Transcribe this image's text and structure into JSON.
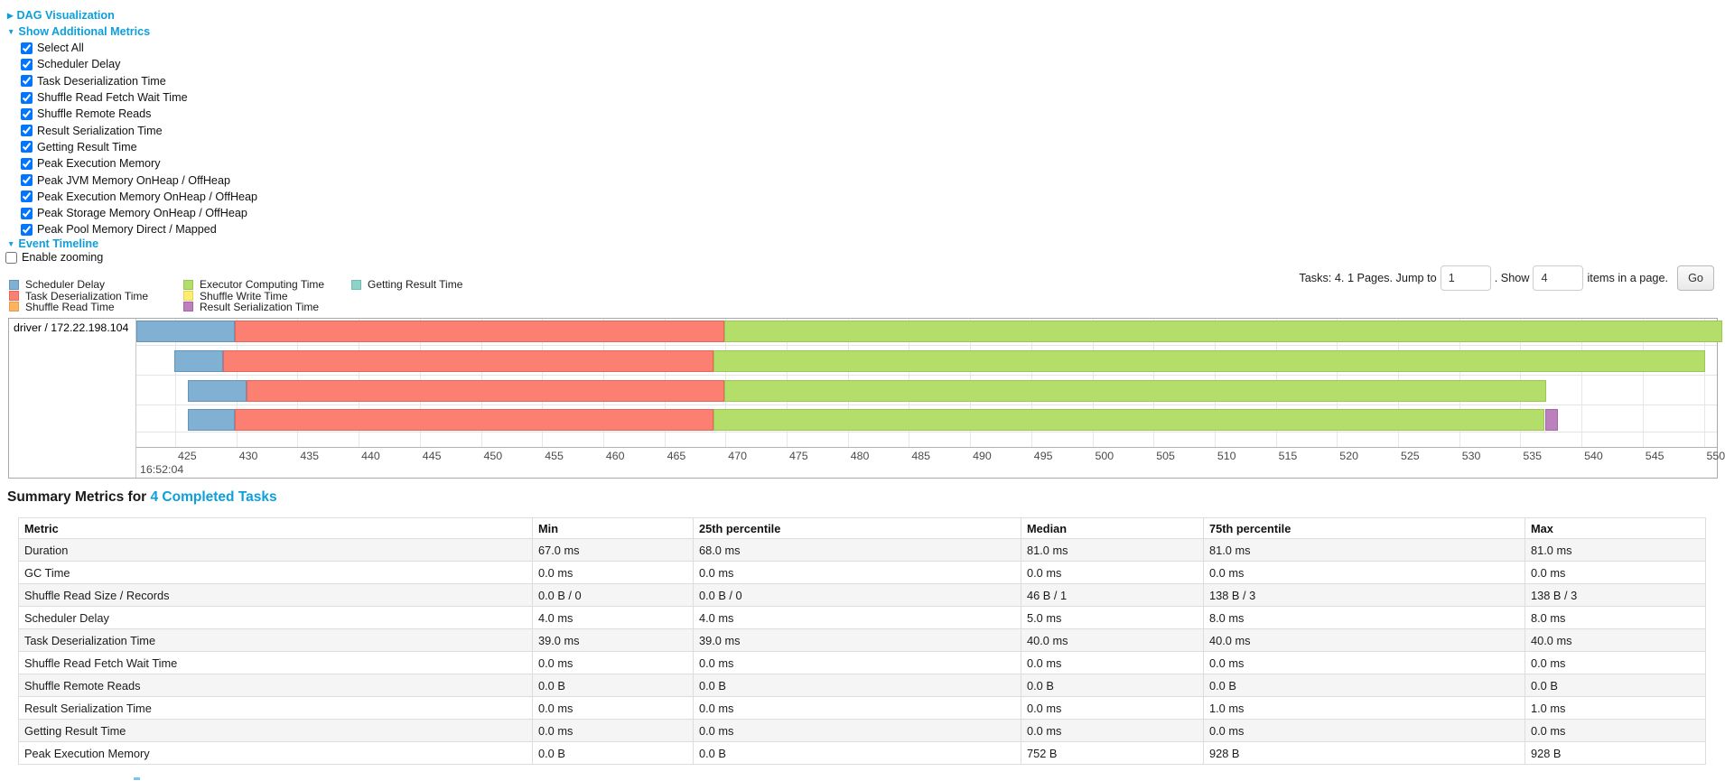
{
  "links": {
    "dag": "DAG Visualization",
    "additional_metrics": "Show Additional Metrics",
    "event_timeline": "Event Timeline"
  },
  "metrics_panel": {
    "items": [
      "Select All",
      "Scheduler Delay",
      "Task Deserialization Time",
      "Shuffle Read Fetch Wait Time",
      "Shuffle Remote Reads",
      "Result Serialization Time",
      "Getting Result Time",
      "Peak Execution Memory",
      "Peak JVM Memory OnHeap / OffHeap",
      "Peak Execution Memory OnHeap / OffHeap",
      "Peak Storage Memory OnHeap / OffHeap",
      "Peak Pool Memory Direct / Mapped"
    ],
    "all_checked": true
  },
  "enable_zooming": {
    "label": "Enable zooming",
    "checked": false
  },
  "legend": {
    "columns": [
      [
        {
          "metric": "scheduler-delay",
          "label": "Scheduler Delay"
        },
        {
          "metric": "task-deserialization-time",
          "label": "Task Deserialization Time"
        },
        {
          "metric": "shuffle-read-time",
          "label": "Shuffle Read Time"
        }
      ],
      [
        {
          "metric": "executor-computing-time",
          "label": "Executor Computing Time"
        },
        {
          "metric": "shuffle-write-time",
          "label": "Shuffle Write Time"
        },
        {
          "metric": "result-serialization-time",
          "label": "Result Serialization Time"
        }
      ],
      [
        {
          "metric": "getting-result-time",
          "label": "Getting Result Time"
        }
      ]
    ]
  },
  "pagination": {
    "label_tasks": "Tasks: 4. 1 Pages. Jump to",
    "page_input": "1",
    "label_show": ". Show",
    "size_input": "4",
    "label_items": "items in a page.",
    "go_label": "Go"
  },
  "chart_data": {
    "type": "timeline",
    "group_label": "driver / 172.22.198.104",
    "x_axis": {
      "tick_start": 425,
      "tick_end": 550,
      "tick_step": 5,
      "unit": "ms",
      "major_label": "16:52:04"
    },
    "colors": {
      "scheduler-delay": {
        "fill": "#80B1D3",
        "border": "#6295BD"
      },
      "task-deserialization-time": {
        "fill": "#FB8072",
        "border": "#E8655A"
      },
      "shuffle-read-time": {
        "fill": "#FDB462",
        "border": "#E89B47"
      },
      "executor-computing-time": {
        "fill": "#B3DE69",
        "border": "#9CC653"
      },
      "shuffle-write-time": {
        "fill": "#FFED6F",
        "border": "#E6D353"
      },
      "result-serialization-time": {
        "fill": "#BC80BD",
        "border": "#A566A8"
      },
      "getting-result-time": {
        "fill": "#8DD3C7",
        "border": "#6FBDB0"
      }
    },
    "bars": [
      {
        "task": 1,
        "segments": [
          {
            "metric": "scheduler-delay",
            "start": 421.8,
            "end": 429.9
          },
          {
            "metric": "task-deserialization-time",
            "start": 429.9,
            "end": 469.9
          },
          {
            "metric": "executor-computing-time",
            "start": 469.9,
            "end": 551.5
          }
        ]
      },
      {
        "task": 2,
        "segments": [
          {
            "metric": "scheduler-delay",
            "start": 424.9,
            "end": 428.9
          },
          {
            "metric": "task-deserialization-time",
            "start": 428.9,
            "end": 469.0
          },
          {
            "metric": "executor-computing-time",
            "start": 469.0,
            "end": 550.1
          }
        ]
      },
      {
        "task": 3,
        "segments": [
          {
            "metric": "scheduler-delay",
            "start": 426.0,
            "end": 430.8
          },
          {
            "metric": "task-deserialization-time",
            "start": 430.8,
            "end": 469.9
          },
          {
            "metric": "executor-computing-time",
            "start": 469.9,
            "end": 537.1
          }
        ]
      },
      {
        "task": 4,
        "segments": [
          {
            "metric": "scheduler-delay",
            "start": 426.0,
            "end": 429.9
          },
          {
            "metric": "task-deserialization-time",
            "start": 429.9,
            "end": 469.0
          },
          {
            "metric": "executor-computing-time",
            "start": 469.0,
            "end": 537.0
          },
          {
            "metric": "result-serialization-time",
            "start": 537.0,
            "end": 538.1
          }
        ]
      }
    ]
  },
  "summary": {
    "heading_prefix": "Summary Metrics for ",
    "heading_link": "4 Completed Tasks",
    "table": {
      "headers": [
        "Metric",
        "Min",
        "25th percentile",
        "Median",
        "75th percentile",
        "Max"
      ],
      "rows": [
        [
          "Duration",
          "67.0 ms",
          "68.0 ms",
          "81.0 ms",
          "81.0 ms",
          "81.0 ms"
        ],
        [
          "GC Time",
          "0.0 ms",
          "0.0 ms",
          "0.0 ms",
          "0.0 ms",
          "0.0 ms"
        ],
        [
          "Shuffle Read Size / Records",
          "0.0 B / 0",
          "0.0 B / 0",
          "46 B / 1",
          "138 B / 3",
          "138 B / 3"
        ],
        [
          "Scheduler Delay",
          "4.0 ms",
          "4.0 ms",
          "5.0 ms",
          "8.0 ms",
          "8.0 ms"
        ],
        [
          "Task Deserialization Time",
          "39.0 ms",
          "39.0 ms",
          "40.0 ms",
          "40.0 ms",
          "40.0 ms"
        ],
        [
          "Shuffle Read Fetch Wait Time",
          "0.0 ms",
          "0.0 ms",
          "0.0 ms",
          "0.0 ms",
          "0.0 ms"
        ],
        [
          "Shuffle Remote Reads",
          "0.0 B",
          "0.0 B",
          "0.0 B",
          "0.0 B",
          "0.0 B"
        ],
        [
          "Result Serialization Time",
          "0.0 ms",
          "0.0 ms",
          "0.0 ms",
          "1.0 ms",
          "1.0 ms"
        ],
        [
          "Getting Result Time",
          "0.0 ms",
          "0.0 ms",
          "0.0 ms",
          "0.0 ms",
          "0.0 ms"
        ],
        [
          "Peak Execution Memory",
          "0.0 B",
          "0.0 B",
          "752 B",
          "928 B",
          "928 B"
        ]
      ]
    }
  },
  "ui": {
    "link_color": "#0d9fdc",
    "stripe_color": "#f5f5f5",
    "arrow_collapsed": "▶",
    "arrow_expanded": "▼"
  }
}
